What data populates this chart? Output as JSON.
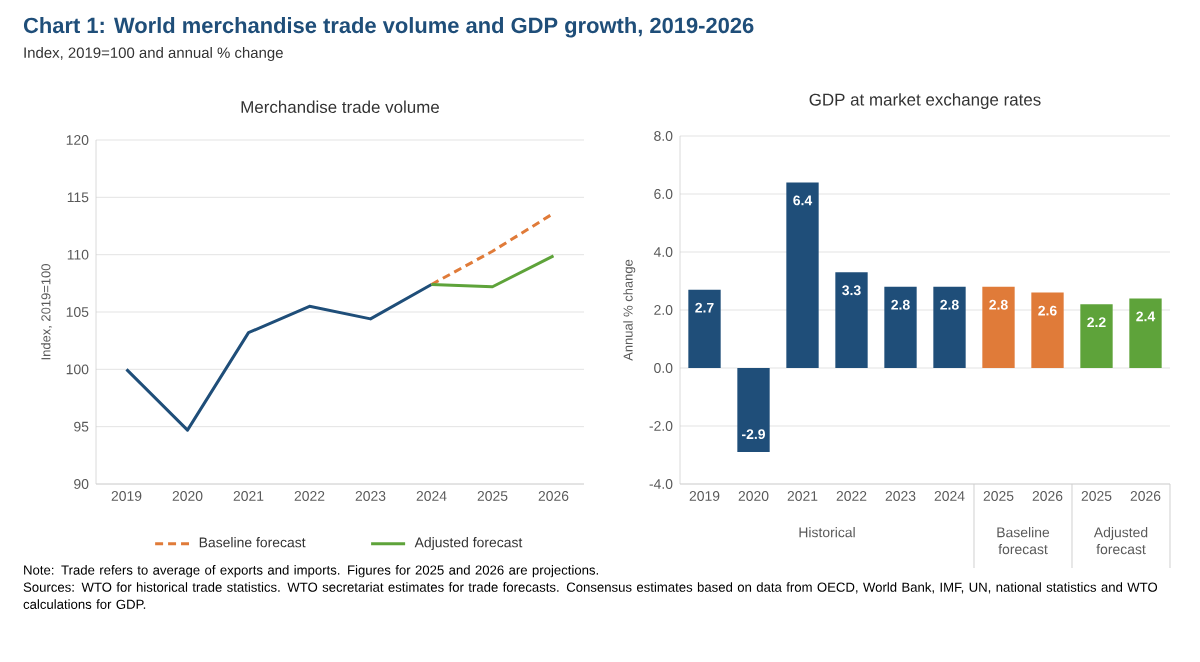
{
  "chart_data": [
    {
      "type": "other",
      "title": "Chart 1: World merchandise trade volume and GDP growth, 2019-2026",
      "subtitle": "Index, 2019=100 and annual % change",
      "annotations": [
        "Note: Trade refers to average of exports and imports. Figures for 2025 and 2026 are projections.",
        "Sources: WTO for historical trade statistics. WTO secretariat estimates for trade forecasts.  Consensus estimates based on data from OECD, World Bank, IMF, UN, national statistics and WTO calculations for GDP."
      ]
    },
    {
      "type": "line",
      "title": "Merchandise trade volume",
      "ylabel": "Index, 2019=100",
      "categories": [
        "2019",
        "2020",
        "2021",
        "2022",
        "2023",
        "2024",
        "2025",
        "2026"
      ],
      "series": [
        {
          "color": "#1f4e79",
          "line_style": "solid",
          "values": [
            100,
            94.7,
            103.2,
            105.5,
            104.4,
            107.4,
            null,
            null
          ]
        },
        {
          "name": "Baseline forecast",
          "color": "#e07b39",
          "line_style": "dashed",
          "values": [
            null,
            null,
            null,
            null,
            null,
            107.4,
            110.3,
            113.6
          ]
        },
        {
          "name": "Adjusted forecast",
          "color": "#5ea33a",
          "line_style": "solid",
          "values": [
            null,
            null,
            null,
            null,
            null,
            107.4,
            107.2,
            109.9
          ]
        }
      ],
      "ylim": [
        90,
        120
      ],
      "yticks": [
        90,
        95,
        100,
        105,
        110,
        115,
        120
      ],
      "grid": "y",
      "legend": "bottom",
      "marker": "none"
    },
    {
      "type": "bar",
      "title": "GDP at market exchange rates",
      "ylabel": "Annual % change",
      "categories": [
        "2019",
        "2020",
        "2021",
        "2022",
        "2023",
        "2024",
        "2025",
        "2026",
        "2025",
        "2026"
      ],
      "values": [
        2.7,
        -2.9,
        6.4,
        3.3,
        2.8,
        2.8,
        2.8,
        2.6,
        2.2,
        2.4
      ],
      "colors": [
        "#1f4e79",
        "#1f4e79",
        "#1f4e79",
        "#1f4e79",
        "#1f4e79",
        "#1f4e79",
        "#e07b39",
        "#e07b39",
        "#5ea33a",
        "#5ea33a"
      ],
      "ylim": [
        -4,
        8
      ],
      "yticks": [
        {
          "value": -4,
          "label": "-4.0"
        },
        {
          "value": -2,
          "label": "-2.0"
        },
        {
          "value": 0,
          "label": "0.0"
        },
        {
          "value": 2,
          "label": "2.0"
        },
        {
          "value": 4,
          "label": "4.0"
        },
        {
          "value": 6,
          "label": "6.0"
        },
        {
          "value": 8,
          "label": "8.0"
        }
      ],
      "grid": "y",
      "data_labels": true,
      "annotations": [
        "Historical",
        "Baseline forecast",
        "Adjusted forecast"
      ]
    }
  ]
}
